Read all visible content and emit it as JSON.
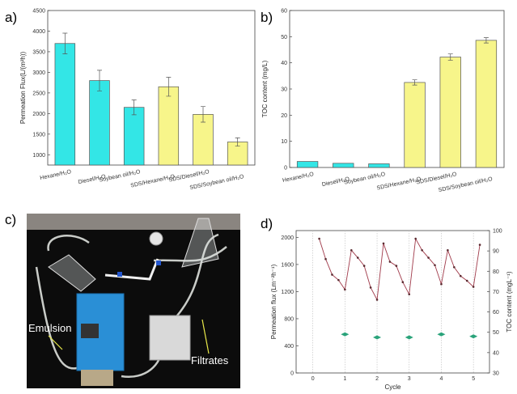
{
  "panels": {
    "a": "a)",
    "b": "b)",
    "c": "c)",
    "d": "d)"
  },
  "photo": {
    "labels": [
      "Emulsion",
      "Filtrates"
    ],
    "arrow_color": "#e8e84a"
  },
  "colors": {
    "cyan": "#33e6e6",
    "yellow": "#f7f58a",
    "line": "#a03a4a",
    "marker": "#2aa37a"
  },
  "chart_data": [
    {
      "type": "bar",
      "panel": "a",
      "categories": [
        "Hexane/H₂O",
        "Diesel/H₂O",
        "Soybean oil/H₂O",
        "SDS/Hexane/H₂O",
        "SDS/Diesel/H₂O",
        "SDS/Soybean oil/H₂O"
      ],
      "values": [
        3700,
        2800,
        2150,
        2650,
        1980,
        1310
      ],
      "errors": [
        250,
        250,
        180,
        230,
        190,
        100
      ],
      "bar_colors": [
        "cyan",
        "cyan",
        "cyan",
        "yellow",
        "yellow",
        "yellow"
      ],
      "ylabel": "Permeation Flux(L/(m²h))",
      "xlabel": "",
      "ylim": [
        750,
        4500
      ],
      "yticks": [
        1000,
        1500,
        2000,
        2500,
        3000,
        3500,
        4000,
        4500
      ]
    },
    {
      "type": "bar",
      "panel": "b",
      "categories": [
        "Hexane/H₂O",
        "Diesel/H₂O",
        "Soybean oil/H₂O",
        "SDS/Hexane/H₂O",
        "SDS/Diesel/H₂O",
        "SDS/Soybean oil/H₂O"
      ],
      "values": [
        2.3,
        1.6,
        1.4,
        32.5,
        42.2,
        48.6
      ],
      "errors": [
        0,
        0,
        0,
        1.0,
        1.2,
        1.0
      ],
      "bar_colors": [
        "cyan",
        "cyan",
        "cyan",
        "yellow",
        "yellow",
        "yellow"
      ],
      "ylabel": "TOC content (mg/L)",
      "xlabel": "",
      "ylim": [
        0,
        60
      ],
      "yticks": [
        0,
        10,
        20,
        30,
        40,
        50,
        60
      ]
    },
    {
      "type": "line",
      "panel": "d",
      "xlabel": "Cycle",
      "ylabel": "Permeation flux (Lm⁻²h⁻¹)",
      "y2label": "TOC content (mgL⁻¹)",
      "xlim": [
        -0.52,
        5.5
      ],
      "ylim": [
        0,
        2100
      ],
      "y2lim": [
        30,
        100
      ],
      "xticks": [
        0,
        1,
        2,
        3,
        4,
        5
      ],
      "yticks": [
        0,
        400,
        800,
        1200,
        1600,
        2000
      ],
      "y2ticks": [
        30,
        40,
        50,
        60,
        70,
        80,
        90,
        100
      ],
      "grid": "vertical dotted lines at integer cycles",
      "series": [
        {
          "axis": "left",
          "x": [
            0.2,
            0.4,
            0.6,
            0.8,
            1.0,
            1.2,
            1.4,
            1.6,
            1.8,
            2.0,
            2.2,
            2.4,
            2.6,
            2.8,
            3.0,
            3.2,
            3.4,
            3.6,
            3.8,
            4.0,
            4.2,
            4.4,
            4.6,
            4.8,
            5.0,
            5.2
          ],
          "y": [
            1980,
            1680,
            1450,
            1370,
            1230,
            1810,
            1700,
            1580,
            1260,
            1080,
            1910,
            1640,
            1580,
            1340,
            1160,
            1980,
            1810,
            1700,
            1590,
            1310,
            1810,
            1560,
            1430,
            1360,
            1270,
            1890
          ]
        },
        {
          "axis": "right",
          "x": [
            1,
            2,
            3,
            4,
            5
          ],
          "y": [
            49,
            47.5,
            47.5,
            49,
            48
          ]
        }
      ]
    }
  ]
}
